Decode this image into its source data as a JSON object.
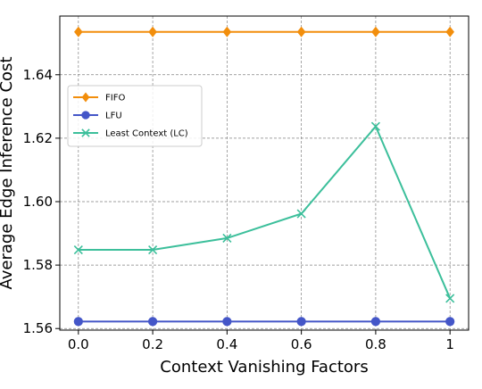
{
  "chart_data": {
    "type": "line",
    "title": "",
    "xlabel": "Context Vanishing Factors",
    "ylabel": "Average Edge Inference Cost",
    "x": [
      0.0,
      0.2,
      0.4,
      0.6,
      0.8,
      1.0
    ],
    "x_tick_labels": [
      "0.0",
      "0.2",
      "0.4",
      "0.6",
      "0.8",
      "1"
    ],
    "y_ticks": [
      1.56,
      1.58,
      1.6,
      1.62,
      1.64
    ],
    "y_tick_labels": [
      "1.56",
      "1.58",
      "1.60",
      "1.62",
      "1.64"
    ],
    "xlim": [
      -0.05,
      1.05
    ],
    "ylim": [
      1.5595,
      1.6585
    ],
    "grid": true,
    "legend_position": "upper-left",
    "series": [
      {
        "name": "FIFO",
        "values": [
          1.6535,
          1.6535,
          1.6535,
          1.6535,
          1.6535,
          1.6535
        ],
        "color": "#f28e0c",
        "marker": "diamond"
      },
      {
        "name": "LFU",
        "values": [
          1.5622,
          1.5622,
          1.5622,
          1.5622,
          1.5622,
          1.5622
        ],
        "color": "#4456c8",
        "marker": "circle"
      },
      {
        "name": "Least Context (LC)",
        "values": [
          1.5848,
          1.5848,
          1.5885,
          1.5962,
          1.6237,
          1.5695
        ],
        "color": "#3cbf9b",
        "marker": "x"
      }
    ]
  }
}
